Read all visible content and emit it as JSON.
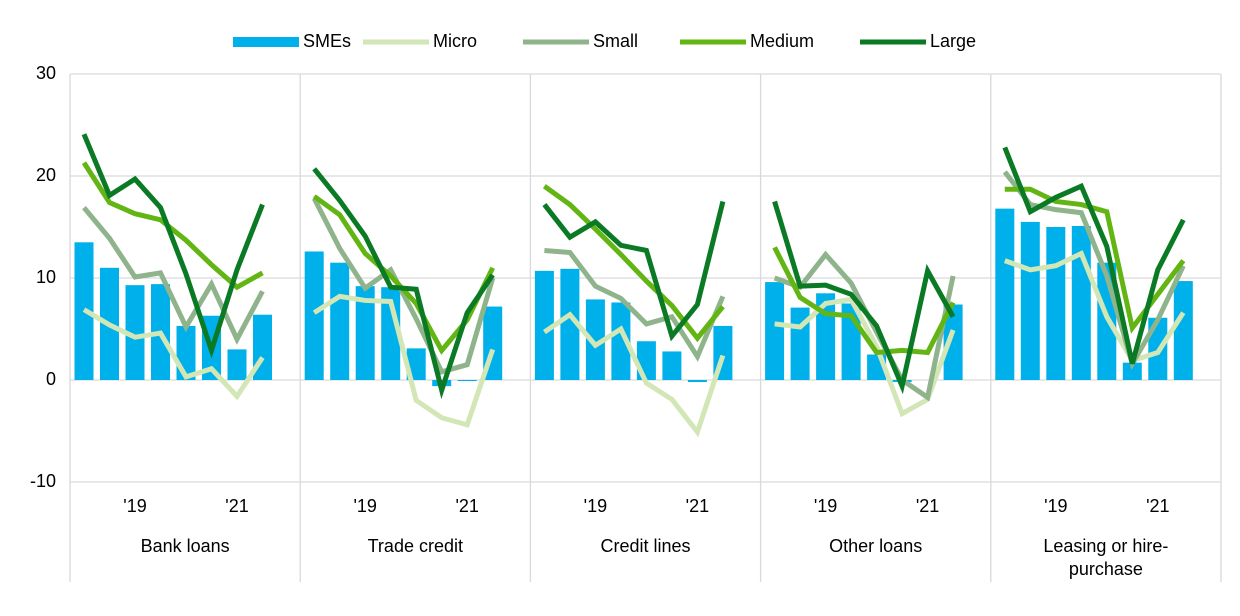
{
  "chart_data": {
    "type": "bar",
    "groups": [
      "Bank loans",
      "Trade credit",
      "Credit lines",
      "Other loans",
      "Leasing or hire-purchase"
    ],
    "categories": [
      null,
      null,
      "'19",
      null,
      null,
      null,
      "'21",
      null
    ],
    "ylim": [
      -10,
      30
    ],
    "yticks": [
      -10,
      0,
      10,
      20,
      30
    ],
    "grid": true,
    "legend": "top",
    "series": [
      {
        "name": "SMEs",
        "type": "bar",
        "color": "#00b0ea",
        "values": [
          [
            13.5,
            11.0,
            9.3,
            9.4,
            5.3,
            6.3,
            3.0,
            6.4
          ],
          [
            12.6,
            11.5,
            9.2,
            9.1,
            3.1,
            -0.6,
            -0.1,
            7.2
          ],
          [
            10.7,
            10.9,
            7.9,
            7.6,
            3.8,
            2.8,
            -0.2,
            5.3
          ],
          [
            9.6,
            7.1,
            8.5,
            7.5,
            2.5,
            -0.2,
            0.0,
            7.4
          ],
          [
            16.8,
            15.5,
            15.0,
            15.1,
            11.5,
            1.7,
            6.1,
            9.7
          ]
        ]
      },
      {
        "name": "Micro",
        "type": "line",
        "color": "#d2e6b6",
        "values": [
          [
            6.9,
            5.4,
            4.2,
            4.6,
            0.3,
            1.1,
            -1.6,
            2.2
          ],
          [
            6.6,
            8.2,
            7.8,
            7.7,
            -2.0,
            -3.7,
            -4.4,
            3.0
          ],
          [
            4.7,
            6.4,
            3.4,
            5.0,
            -0.3,
            -1.9,
            -5.1,
            2.4
          ],
          [
            5.5,
            5.2,
            7.5,
            7.9,
            3.3,
            -3.3,
            -1.9,
            4.9
          ],
          [
            11.7,
            10.8,
            11.2,
            12.4,
            6.2,
            1.9,
            2.7,
            6.6
          ]
        ]
      },
      {
        "name": "Small",
        "type": "line",
        "color": "#8fb48c",
        "values": [
          [
            16.9,
            13.9,
            10.1,
            10.5,
            5.2,
            9.4,
            4.0,
            8.7
          ],
          [
            17.8,
            12.9,
            9.0,
            10.8,
            6.0,
            0.8,
            1.5,
            10.0
          ],
          [
            12.7,
            12.5,
            9.2,
            8.0,
            5.5,
            6.2,
            2.3,
            8.2
          ],
          [
            10.0,
            9.1,
            12.3,
            9.5,
            4.7,
            0.0,
            -1.7,
            10.2
          ],
          [
            20.4,
            17.2,
            16.7,
            16.4,
            10.2,
            1.6,
            5.9,
            11.2
          ]
        ]
      },
      {
        "name": "Medium",
        "type": "line",
        "color": "#62b512",
        "values": [
          [
            21.3,
            17.4,
            16.3,
            15.7,
            13.7,
            11.3,
            9.1,
            10.5
          ],
          [
            18.0,
            16.2,
            12.4,
            10.2,
            7.5,
            2.9,
            5.9,
            11.0
          ],
          [
            19.0,
            17.2,
            14.8,
            12.3,
            9.7,
            7.3,
            4.1,
            7.2
          ],
          [
            13.0,
            8.1,
            6.5,
            6.3,
            2.7,
            2.9,
            2.7,
            7.6
          ],
          [
            18.7,
            18.7,
            17.5,
            17.2,
            16.5,
            5.1,
            8.4,
            11.7
          ]
        ]
      },
      {
        "name": "Large",
        "type": "line",
        "color": "#0a7a24",
        "values": [
          [
            24.1,
            18.1,
            19.7,
            16.9,
            10.4,
            2.9,
            10.8,
            17.2
          ],
          [
            20.7,
            17.6,
            14.1,
            9.1,
            8.9,
            -1.0,
            6.6,
            10.3
          ],
          [
            17.2,
            14.0,
            15.5,
            13.2,
            12.7,
            4.3,
            7.4,
            17.5
          ],
          [
            17.5,
            9.2,
            9.3,
            8.4,
            5.3,
            -0.6,
            10.7,
            6.2
          ],
          [
            22.8,
            16.5,
            17.9,
            19.0,
            13.1,
            1.6,
            10.8,
            15.7
          ]
        ]
      }
    ]
  }
}
